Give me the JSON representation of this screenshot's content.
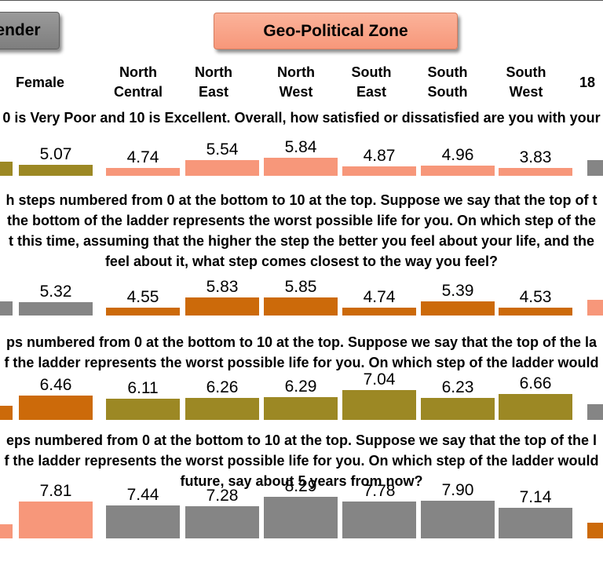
{
  "buttons": {
    "gender": "ender",
    "zone": "Geo-Political Zone"
  },
  "headers": {
    "female": "Female",
    "nc": [
      "North",
      "Central"
    ],
    "ne": [
      "North",
      "East"
    ],
    "nw": [
      "North",
      "West"
    ],
    "se": [
      "South",
      "East"
    ],
    "ss": [
      "South",
      "South"
    ],
    "sw": [
      "South",
      "West"
    ],
    "age": "18"
  },
  "questions": {
    "q1": [
      "0 is Very Poor and 10 is Excellent. Overall, how satisfied or dissatisfied are you with your"
    ],
    "q2": [
      "h steps numbered from 0 at the bottom to 10 at the top. Suppose we say that the top of t",
      "the bottom of the ladder represents the worst possible life for you. On which step of the",
      "t this time, assuming that the higher the step the better you feel about your life, and the",
      "feel about it, what step comes closest to the way you feel?"
    ],
    "q3": [
      "ps numbered from 0 at the bottom to 10 at the top. Suppose we say that the top of the la",
      "f the ladder represents the worst possible life for you. On which step of the ladder would"
    ],
    "q4": [
      "eps numbered from 0 at the bottom to 10 at the top. Suppose we say that the top of the l",
      "f the ladder represents the worst possible life for you. On which step of the ladder would",
      "future, say about 5 years from now?"
    ]
  },
  "chart_data": {
    "type": "bar",
    "categories": [
      "Female",
      "North Central",
      "North East",
      "North West",
      "South East",
      "South South",
      "South West"
    ],
    "colors": {
      "olive": "#9c8824",
      "salmon": "#f7977a",
      "orange": "#cc6a0a",
      "gray": "#858585"
    },
    "rows": [
      {
        "values": [
          5.07,
          4.74,
          5.54,
          5.84,
          4.87,
          4.96,
          3.83
        ],
        "labels": [
          "5.07",
          "4.74",
          "5.54",
          "5.84",
          "4.87",
          "4.96",
          "3.83"
        ],
        "color": "olive",
        "zone_color": "salmon",
        "left_color": "olive",
        "right_color": "gray"
      },
      {
        "values": [
          5.32,
          4.55,
          5.83,
          5.85,
          4.74,
          5.39,
          4.53
        ],
        "labels": [
          "5.32",
          "4.55",
          "5.83",
          "5.85",
          "4.74",
          "5.39",
          "4.53"
        ],
        "color": "gray",
        "zone_color": "orange",
        "left_color": "gray",
        "right_color": "salmon"
      },
      {
        "values": [
          6.46,
          6.11,
          6.26,
          6.29,
          7.04,
          6.23,
          6.66
        ],
        "labels": [
          "6.46",
          "6.11",
          "6.26",
          "6.29",
          "7.04",
          "6.23",
          "6.66"
        ],
        "color": "orange",
        "zone_color": "olive",
        "left_color": "orange",
        "right_color": "gray"
      },
      {
        "values": [
          7.81,
          7.44,
          7.28,
          8.29,
          7.78,
          7.9,
          7.14
        ],
        "labels": [
          "7.81",
          "7.44",
          "7.28",
          "8.29",
          "7.78",
          "7.90",
          "7.14"
        ],
        "color": "salmon",
        "zone_color": "gray",
        "left_color": "salmon",
        "right_color": "orange"
      }
    ]
  }
}
